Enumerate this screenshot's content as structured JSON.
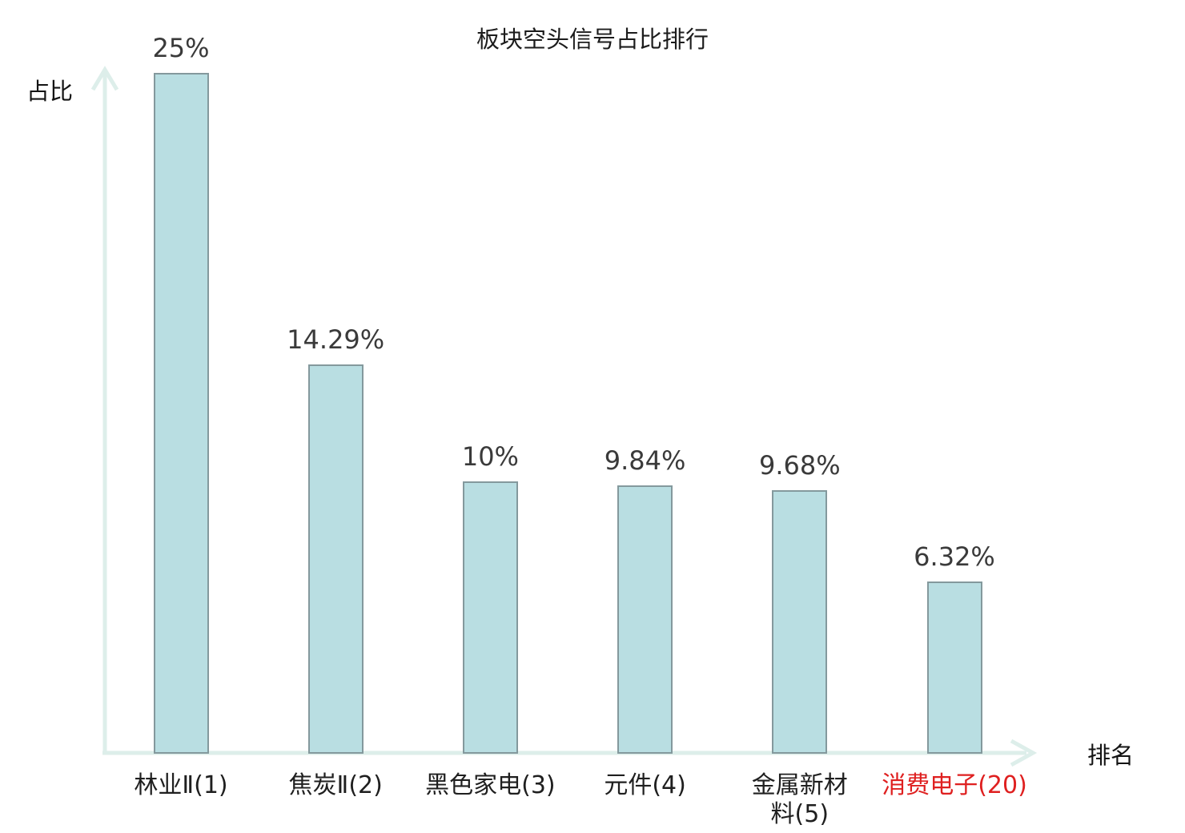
{
  "chart_data": {
    "type": "bar",
    "title": "板块空头信号占比排行",
    "ylabel": "占比",
    "xlabel": "排名",
    "ylim": [
      0,
      25
    ],
    "grid": false,
    "legend": "none",
    "categories": [
      "林业Ⅱ(1)",
      "焦炭Ⅱ(2)",
      "黑色家电(3)",
      "元件(4)",
      "金属新材料(5)",
      "消费电子(20)"
    ],
    "category_display_lines": [
      [
        "林业Ⅱ(1)"
      ],
      [
        "焦炭Ⅱ(2)"
      ],
      [
        "黑色家电(3)"
      ],
      [
        "元件(4)"
      ],
      [
        "金属新材",
        "料(5)"
      ],
      [
        "消费电子(20)"
      ]
    ],
    "values": [
      25,
      14.29,
      10,
      9.84,
      9.68,
      6.32
    ],
    "value_labels": [
      "25%",
      "14.29%",
      "10%",
      "9.84%",
      "9.68%",
      "6.32%"
    ],
    "highlight_index": 5,
    "colors": {
      "bar_fill": "#b9dee2",
      "bar_border": "#84999d",
      "axis": "#ddeeea",
      "value_text": "#3a3a3a",
      "category_text": "#1f1f1f",
      "highlight_text": "#df2020",
      "title_text": "#1c1c1c"
    }
  }
}
